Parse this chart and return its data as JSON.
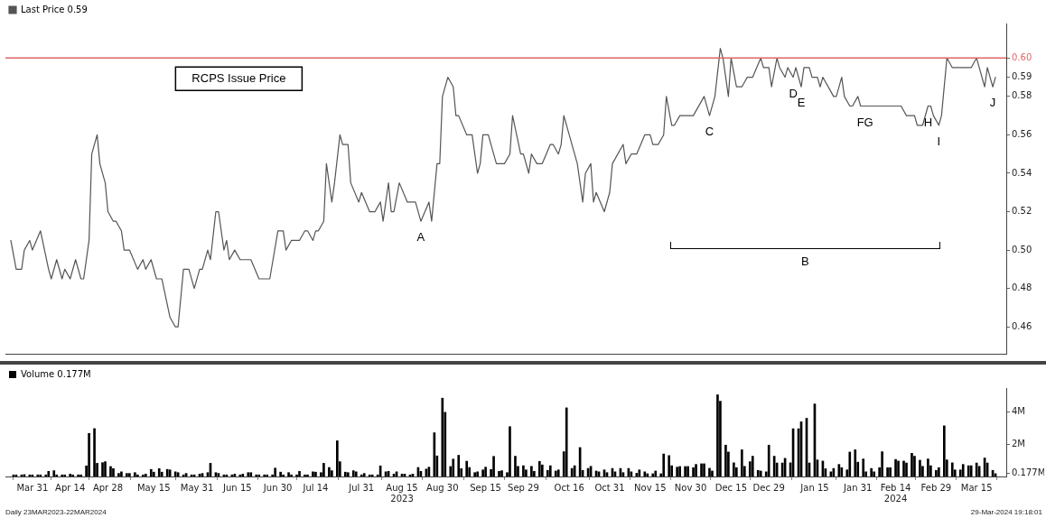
{
  "chart_data": [
    {
      "type": "line",
      "legend": "top left",
      "tick_labels": "y",
      "xlim": [
        "2023-03-21",
        "2024-03-26"
      ],
      "ylim": [
        0.446,
        0.618
      ],
      "yticks": [
        0.46,
        0.48,
        {
          "value": 0.5,
          "label": "0.50"
        },
        0.52,
        0.54,
        0.56,
        0.58,
        {
          "value": 0.59,
          "label": "0.59"
        },
        {
          "value": 0.6,
          "label": "0.60"
        }
      ],
      "ref_lines": [
        {
          "axis": "y",
          "value": 0.6,
          "label": "RCPS Issue Price",
          "color": "#e06666"
        }
      ],
      "annotations": [
        {
          "text": "A",
          "x": "2023-08-22",
          "y": 0.515
        },
        {
          "text": "C",
          "x": "2023-12-07",
          "y": 0.57
        },
        {
          "text": "D",
          "x": "2024-01-07",
          "y": 0.59
        },
        {
          "text": "E",
          "x": "2024-01-10",
          "y": 0.585
        },
        {
          "text": "F",
          "x": "2024-02-01",
          "y": 0.575
        },
        {
          "text": "G",
          "x": "2024-02-04",
          "y": 0.575
        },
        {
          "text": "H",
          "x": "2024-02-26",
          "y": 0.575
        },
        {
          "text": "I",
          "x": "2024-03-01",
          "y": 0.565
        },
        {
          "text": "J",
          "x": "2024-03-21",
          "y": 0.585
        },
        "B"
      ],
      "series": [
        {
          "name": "Last Price 0.59",
          "color": "#555555",
          "x": [
            "2023-03-23",
            "2023-03-25",
            "2023-03-27",
            "2023-03-28",
            "2023-03-30",
            "2023-03-31",
            "2023-04-03",
            "2023-04-06",
            "2023-04-07",
            "2023-04-09",
            "2023-04-11",
            "2023-04-12",
            "2023-04-14",
            "2023-04-16",
            "2023-04-18",
            "2023-04-19",
            "2023-04-21",
            "2023-04-22",
            "2023-04-24",
            "2023-04-25",
            "2023-04-27",
            "2023-04-28",
            "2023-04-30",
            "2023-05-01",
            "2023-05-03",
            "2023-05-04",
            "2023-05-06",
            "2023-05-09",
            "2023-05-11",
            "2023-05-12",
            "2023-05-14",
            "2023-05-16",
            "2023-05-18",
            "2023-05-21",
            "2023-05-23",
            "2023-05-24",
            "2023-05-26",
            "2023-05-28",
            "2023-05-30",
            "2023-06-01",
            "2023-06-02",
            "2023-06-04",
            "2023-06-05",
            "2023-06-07",
            "2023-06-08",
            "2023-06-10",
            "2023-06-11",
            "2023-06-12",
            "2023-06-14",
            "2023-06-16",
            "2023-06-20",
            "2023-06-23",
            "2023-06-27",
            "2023-06-30",
            "2023-07-02",
            "2023-07-03",
            "2023-07-05",
            "2023-07-08",
            "2023-07-10",
            "2023-07-11",
            "2023-07-13",
            "2023-07-14",
            "2023-07-15",
            "2023-07-17",
            "2023-07-18",
            "2023-07-20",
            "2023-07-21",
            "2023-07-23",
            "2023-07-24",
            "2023-07-26",
            "2023-07-27",
            "2023-07-30",
            "2023-07-31",
            "2023-08-03",
            "2023-08-05",
            "2023-08-07",
            "2023-08-08",
            "2023-08-10",
            "2023-08-11",
            "2023-08-12",
            "2023-08-14",
            "2023-08-17",
            "2023-08-20",
            "2023-08-22",
            "2023-08-25",
            "2023-08-26",
            "2023-08-28",
            "2023-08-29",
            "2023-08-30",
            "2023-09-01",
            "2023-09-03",
            "2023-09-04",
            "2023-09-05",
            "2023-09-08",
            "2023-09-10",
            "2023-09-12",
            "2023-09-13",
            "2023-09-14",
            "2023-09-16",
            "2023-09-17",
            "2023-09-19",
            "2023-09-22",
            "2023-09-24",
            "2023-09-25",
            "2023-09-28",
            "2023-09-29",
            "2023-10-01",
            "2023-10-02",
            "2023-10-04",
            "2023-10-06",
            "2023-10-09",
            "2023-10-10",
            "2023-10-12",
            "2023-10-13",
            "2023-10-14",
            "2023-10-16",
            "2023-10-17",
            "2023-10-19",
            "2023-10-21",
            "2023-10-22",
            "2023-10-24",
            "2023-10-25",
            "2023-10-26",
            "2023-10-29",
            "2023-10-31",
            "2023-11-01",
            "2023-11-05",
            "2023-11-06",
            "2023-11-08",
            "2023-11-10",
            "2023-11-13",
            "2023-11-15",
            "2023-11-16",
            "2023-11-18",
            "2023-11-20",
            "2023-11-21",
            "2023-11-23",
            "2023-11-24",
            "2023-11-26",
            "2023-12-01",
            "2023-12-05",
            "2023-12-07",
            "2023-12-09",
            "2023-12-11",
            "2023-12-12",
            "2023-12-14",
            "2023-12-15",
            "2023-12-17",
            "2023-12-19",
            "2023-12-21",
            "2023-12-23",
            "2023-12-26",
            "2023-12-27",
            "2023-12-29",
            "2023-12-30",
            "2024-01-01",
            "2024-01-02",
            "2024-01-04",
            "2024-01-05",
            "2024-01-07",
            "2024-01-08",
            "2024-01-10",
            "2024-01-11",
            "2024-01-13",
            "2024-01-14",
            "2024-01-16",
            "2024-01-17",
            "2024-01-18",
            "2024-01-22",
            "2024-01-23",
            "2024-01-25",
            "2024-01-26",
            "2024-01-28",
            "2024-01-29",
            "2024-01-31",
            "2024-02-01",
            "2024-02-04",
            "2024-02-16",
            "2024-02-18",
            "2024-02-21",
            "2024-02-22",
            "2024-02-24",
            "2024-02-26",
            "2024-02-27",
            "2024-02-28",
            "2024-03-01",
            "2024-03-02",
            "2024-03-04",
            "2024-03-06",
            "2024-03-13",
            "2024-03-15",
            "2024-03-16",
            "2024-03-18",
            "2024-03-19",
            "2024-03-20",
            "2024-03-21",
            "2024-03-22"
          ],
          "values": [
            0.505,
            0.49,
            0.49,
            0.5,
            0.505,
            0.5,
            0.51,
            0.49,
            0.485,
            0.495,
            0.485,
            0.49,
            0.485,
            0.495,
            0.485,
            0.485,
            0.505,
            0.55,
            0.56,
            0.545,
            0.535,
            0.52,
            0.515,
            0.515,
            0.51,
            0.5,
            0.5,
            0.49,
            0.495,
            0.49,
            0.495,
            0.485,
            0.485,
            0.465,
            0.46,
            0.46,
            0.49,
            0.49,
            0.48,
            0.49,
            0.49,
            0.5,
            0.495,
            0.52,
            0.52,
            0.5,
            0.505,
            0.495,
            0.5,
            0.495,
            0.495,
            0.485,
            0.485,
            0.51,
            0.51,
            0.5,
            0.505,
            0.505,
            0.51,
            0.51,
            0.505,
            0.51,
            0.51,
            0.515,
            0.545,
            0.525,
            0.535,
            0.56,
            0.555,
            0.555,
            0.535,
            0.525,
            0.53,
            0.52,
            0.52,
            0.525,
            0.515,
            0.535,
            0.52,
            0.52,
            0.535,
            0.525,
            0.525,
            0.515,
            0.525,
            0.515,
            0.545,
            0.545,
            0.58,
            0.59,
            0.585,
            0.57,
            0.57,
            0.56,
            0.56,
            0.54,
            0.545,
            0.56,
            0.56,
            0.555,
            0.545,
            0.545,
            0.55,
            0.57,
            0.55,
            0.55,
            0.54,
            0.55,
            0.545,
            0.545,
            0.555,
            0.555,
            0.55,
            0.555,
            0.57,
            0.56,
            0.555,
            0.545,
            0.525,
            0.54,
            0.545,
            0.525,
            0.53,
            0.52,
            0.53,
            0.545,
            0.555,
            0.545,
            0.55,
            0.55,
            0.56,
            0.56,
            0.555,
            0.555,
            0.56,
            0.58,
            0.565,
            0.565,
            0.57,
            0.57,
            0.58,
            0.57,
            0.58,
            0.605,
            0.6,
            0.58,
            0.6,
            0.585,
            0.585,
            0.59,
            0.59,
            0.6,
            0.595,
            0.595,
            0.585,
            0.6,
            0.595,
            0.59,
            0.595,
            0.59,
            0.595,
            0.585,
            0.595,
            0.595,
            0.59,
            0.59,
            0.585,
            0.59,
            0.58,
            0.58,
            0.59,
            0.58,
            0.575,
            0.575,
            0.58,
            0.575,
            0.575,
            0.575,
            0.57,
            0.57,
            0.565,
            0.565,
            0.575,
            0.575,
            0.57,
            0.565,
            0.57,
            0.6,
            0.595,
            0.595,
            0.6,
            0.595,
            0.585,
            0.595,
            0.59,
            0.585,
            0.59
          ]
        }
      ]
    },
    {
      "type": "bar",
      "legend": "top left",
      "xlim": [
        "2023-03-21",
        "2024-03-26"
      ],
      "ylim": [
        0,
        5.5
      ],
      "yticks": [
        {
          "value": 0.177,
          "label": "0.177M"
        },
        {
          "value": 2,
          "label": "2M"
        },
        {
          "value": 4,
          "label": "4M"
        }
      ],
      "xticks": [
        {
          "value": "2023-03-31",
          "label": "Mar 31"
        },
        {
          "value": "2023-04-14",
          "label": "Apr 14"
        },
        {
          "value": "2023-04-28",
          "label": "Apr 28"
        },
        {
          "value": "2023-05-15",
          "label": "May 15"
        },
        {
          "value": "2023-05-31",
          "label": "May 31"
        },
        {
          "value": "2023-06-15",
          "label": "Jun 15"
        },
        {
          "value": "2023-06-30",
          "label": "Jun 30"
        },
        {
          "value": "2023-07-14",
          "label": "Jul 14"
        },
        {
          "value": "2023-07-31",
          "label": "Jul 31"
        },
        {
          "value": "2023-08-15",
          "label": "Aug 15\n2023"
        },
        {
          "value": "2023-08-30",
          "label": "Aug 30"
        },
        {
          "value": "2023-09-15",
          "label": "Sep 15"
        },
        {
          "value": "2023-09-29",
          "label": "Sep 29"
        },
        {
          "value": "2023-10-16",
          "label": "Oct 16"
        },
        {
          "value": "2023-10-31",
          "label": "Oct 31"
        },
        {
          "value": "2023-11-15",
          "label": "Nov 15"
        },
        {
          "value": "2023-11-30",
          "label": "Nov 30"
        },
        {
          "value": "2023-12-15",
          "label": "Dec 15"
        },
        {
          "value": "2023-12-29",
          "label": "Dec 29"
        },
        {
          "value": "2024-01-15",
          "label": "Jan 15"
        },
        {
          "value": "2024-01-31",
          "label": "Jan 31"
        },
        {
          "value": "2024-02-14",
          "label": "Feb 14\n2024"
        },
        {
          "value": "2024-02-29",
          "label": "Feb 29"
        },
        {
          "value": "2024-03-15",
          "label": "Mar 15"
        }
      ],
      "annotations": [
        "Daily 23MAR2023-22MAR2024",
        "29-Mar-2024 19:18:01"
      ],
      "series": [
        {
          "name": "Volume 0.177M",
          "color": "#000000",
          "x": [
            "2023-03-24",
            "2023-03-25",
            "2023-03-27",
            "2023-03-28",
            "2023-03-30",
            "2023-03-31",
            "2023-04-02",
            "2023-04-03",
            "2023-04-05",
            "2023-04-06",
            "2023-04-08",
            "2023-04-09",
            "2023-04-11",
            "2023-04-12",
            "2023-04-14",
            "2023-04-15",
            "2023-04-17",
            "2023-04-18",
            "2023-04-20",
            "2023-04-21",
            "2023-04-23",
            "2023-04-24",
            "2023-04-26",
            "2023-04-27",
            "2023-04-29",
            "2023-04-30",
            "2023-05-02",
            "2023-05-03",
            "2023-05-05",
            "2023-05-06",
            "2023-05-08",
            "2023-05-09",
            "2023-05-11",
            "2023-05-12",
            "2023-05-14",
            "2023-05-15",
            "2023-05-17",
            "2023-05-18",
            "2023-05-20",
            "2023-05-21",
            "2023-05-23",
            "2023-05-24",
            "2023-05-26",
            "2023-05-27",
            "2023-05-29",
            "2023-05-30",
            "2023-06-01",
            "2023-06-02",
            "2023-06-04",
            "2023-06-05",
            "2023-06-07",
            "2023-06-08",
            "2023-06-10",
            "2023-06-11",
            "2023-06-13",
            "2023-06-14",
            "2023-06-16",
            "2023-06-17",
            "2023-06-19",
            "2023-06-20",
            "2023-06-22",
            "2023-06-23",
            "2023-06-25",
            "2023-06-26",
            "2023-06-28",
            "2023-06-29",
            "2023-07-01",
            "2023-07-02",
            "2023-07-04",
            "2023-07-05",
            "2023-07-07",
            "2023-07-08",
            "2023-07-10",
            "2023-07-11",
            "2023-07-13",
            "2023-07-14",
            "2023-07-16",
            "2023-07-17",
            "2023-07-19",
            "2023-07-20",
            "2023-07-22",
            "2023-07-23",
            "2023-07-25",
            "2023-07-26",
            "2023-07-28",
            "2023-07-29",
            "2023-07-31",
            "2023-08-01",
            "2023-08-03",
            "2023-08-04",
            "2023-08-06",
            "2023-08-07",
            "2023-08-09",
            "2023-08-10",
            "2023-08-12",
            "2023-08-13",
            "2023-08-15",
            "2023-08-16",
            "2023-08-18",
            "2023-08-19",
            "2023-08-21",
            "2023-08-22",
            "2023-08-24",
            "2023-08-25",
            "2023-08-27",
            "2023-08-28",
            "2023-08-30",
            "2023-08-31",
            "2023-09-02",
            "2023-09-03",
            "2023-09-05",
            "2023-09-06",
            "2023-09-08",
            "2023-09-09",
            "2023-09-11",
            "2023-09-12",
            "2023-09-14",
            "2023-09-15",
            "2023-09-17",
            "2023-09-18",
            "2023-09-20",
            "2023-09-21",
            "2023-09-23",
            "2023-09-24",
            "2023-09-26",
            "2023-09-27",
            "2023-09-29",
            "2023-09-30",
            "2023-10-02",
            "2023-10-03",
            "2023-10-05",
            "2023-10-06",
            "2023-10-08",
            "2023-10-09",
            "2023-10-11",
            "2023-10-12",
            "2023-10-14",
            "2023-10-15",
            "2023-10-17",
            "2023-10-18",
            "2023-10-20",
            "2023-10-21",
            "2023-10-23",
            "2023-10-24",
            "2023-10-26",
            "2023-10-27",
            "2023-10-29",
            "2023-10-30",
            "2023-11-01",
            "2023-11-02",
            "2023-11-04",
            "2023-11-05",
            "2023-11-07",
            "2023-11-08",
            "2023-11-10",
            "2023-11-11",
            "2023-11-13",
            "2023-11-14",
            "2023-11-16",
            "2023-11-17",
            "2023-11-19",
            "2023-11-20",
            "2023-11-22",
            "2023-11-23",
            "2023-11-25",
            "2023-11-26",
            "2023-11-28",
            "2023-11-29",
            "2023-12-01",
            "2023-12-02",
            "2023-12-04",
            "2023-12-05",
            "2023-12-07",
            "2023-12-08",
            "2023-12-10",
            "2023-12-11",
            "2023-12-13",
            "2023-12-14",
            "2023-12-16",
            "2023-12-17",
            "2023-12-19",
            "2023-12-20",
            "2023-12-22",
            "2023-12-23",
            "2023-12-25",
            "2023-12-26",
            "2023-12-28",
            "2023-12-29",
            "2023-12-31",
            "2024-01-01",
            "2024-01-03",
            "2024-01-04",
            "2024-01-06",
            "2024-01-07",
            "2024-01-09",
            "2024-01-10",
            "2024-01-12",
            "2024-01-13",
            "2024-01-15",
            "2024-01-16",
            "2024-01-18",
            "2024-01-19",
            "2024-01-21",
            "2024-01-22",
            "2024-01-24",
            "2024-01-25",
            "2024-01-27",
            "2024-01-28",
            "2024-01-30",
            "2024-01-31",
            "2024-02-02",
            "2024-02-03",
            "2024-02-05",
            "2024-02-06",
            "2024-02-08",
            "2024-02-09",
            "2024-02-11",
            "2024-02-12",
            "2024-02-14",
            "2024-02-15",
            "2024-02-17",
            "2024-02-18",
            "2024-02-20",
            "2024-02-21",
            "2024-02-23",
            "2024-02-24",
            "2024-02-26",
            "2024-02-27",
            "2024-02-29",
            "2024-03-01",
            "2024-03-03",
            "2024-03-04",
            "2024-03-06",
            "2024-03-07",
            "2024-03-09",
            "2024-03-10",
            "2024-03-12",
            "2024-03-13",
            "2024-03-15",
            "2024-03-16",
            "2024-03-18",
            "2024-03-19",
            "2024-03-21",
            "2024-03-22"
          ],
          "values": [
            0.1,
            0.1,
            0.1,
            0.12,
            0.1,
            0.1,
            0.1,
            0.1,
            0.1,
            0.32,
            0.36,
            0.1,
            0.1,
            0.1,
            0.15,
            0.1,
            0.1,
            0.1,
            0.66,
            2.68,
            2.98,
            0.82,
            0.86,
            0.92,
            0.62,
            0.49,
            0.19,
            0.29,
            0.19,
            0.19,
            0.24,
            0.1,
            0.1,
            0.15,
            0.44,
            0.27,
            0.49,
            0.27,
            0.44,
            0.41,
            0.29,
            0.24,
            0.1,
            0.19,
            0.1,
            0.1,
            0.15,
            0.19,
            0.24,
            0.82,
            0.24,
            0.19,
            0.1,
            0.1,
            0.1,
            0.15,
            0.1,
            0.15,
            0.24,
            0.24,
            0.1,
            0.1,
            0.1,
            0.1,
            0.1,
            0.52,
            0.27,
            0.1,
            0.24,
            0.1,
            0.1,
            0.32,
            0.1,
            0.1,
            0.29,
            0.27,
            0.24,
            0.82,
            0.56,
            0.36,
            2.22,
            0.92,
            0.27,
            0.24,
            0.36,
            0.29,
            0.1,
            0.19,
            0.1,
            0.1,
            0.1,
            0.66,
            0.29,
            0.32,
            0.15,
            0.29,
            0.15,
            0.15,
            0.1,
            0.15,
            0.56,
            0.32,
            0.46,
            0.58,
            2.72,
            1.28,
            4.87,
            3.99,
            0.62,
            1.08,
            1.32,
            0.49,
            0.95,
            0.56,
            0.24,
            0.29,
            0.41,
            0.58,
            0.44,
            1.25,
            0.32,
            0.36,
            0.24,
            3.1,
            1.26,
            0.63,
            0.67,
            0.41,
            0.63,
            0.32,
            0.94,
            0.72,
            0.38,
            0.67,
            0.34,
            0.41,
            1.54,
            4.27,
            0.5,
            0.67,
            1.8,
            0.38,
            0.5,
            0.63,
            0.34,
            0.29,
            0.41,
            0.24,
            0.5,
            0.29,
            0.5,
            0.24,
            0.5,
            0.29,
            0.2,
            0.41,
            0.29,
            0.17,
            0.17,
            0.34,
            0.17,
            1.4,
            1.3,
            0.67,
            0.58,
            0.62,
            0.62,
            0.62,
            0.55,
            0.75,
            0.79,
            0.79,
            0.51,
            0.34,
            5.08,
            4.68,
            1.95,
            1.52,
            0.85,
            0.55,
            1.66,
            0.63,
            0.92,
            1.26,
            0.38,
            0.34,
            0.29,
            1.95,
            1.26,
            0.84,
            0.84,
            1.13,
            0.85,
            2.97,
            2.97,
            3.4,
            3.62,
            0.84,
            4.51,
            1.03,
            0.96,
            0.48,
            0.29,
            0.5,
            0.75,
            0.55,
            0.41,
            1.52,
            1.66,
            0.89,
            1.09,
            0.29,
            0.5,
            0.29,
            0.55,
            1.54,
            0.55,
            0.55,
            1.06,
            0.96,
            0.96,
            0.84,
            1.44,
            1.26,
            1.01,
            0.63,
            1.09,
            0.67,
            0.38,
            0.55,
            3.15,
            1.03,
            0.85,
            0.41,
            0.41,
            0.75,
            0.67,
            0.67,
            0.84,
            0.63,
            1.15,
            0.84,
            0.38,
            0.177
          ]
        }
      ]
    }
  ]
}
